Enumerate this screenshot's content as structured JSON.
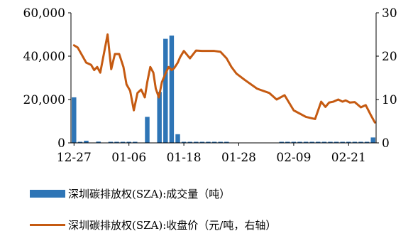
{
  "chart_data": {
    "type": "bar+line",
    "x_tick_labels": [
      "12-27",
      "01-06",
      "01-18",
      "01-28",
      "02-09",
      "02-21"
    ],
    "y_left": {
      "ylim": [
        0,
        60000
      ],
      "ticks": [
        "0",
        "20,000",
        "40,000",
        "60,000"
      ]
    },
    "y_right": {
      "ylim": [
        0,
        30
      ],
      "ticks": [
        "0",
        "10",
        "20",
        "30"
      ]
    },
    "colors": {
      "bar": "#2e75b6",
      "line": "#c55a11"
    },
    "series": [
      {
        "name": "深圳碳排放权(SZA):成交量（吨）",
        "type": "bar",
        "axis": "left",
        "x": [
          0,
          1,
          2,
          4,
          6,
          7,
          8,
          9,
          10,
          12,
          14,
          15,
          16,
          17,
          18,
          19,
          20,
          21,
          22,
          23,
          24,
          25,
          34,
          35,
          36,
          37,
          38,
          39,
          40,
          41,
          42,
          43,
          44,
          45,
          46,
          47,
          48,
          49
        ],
        "values": [
          21000,
          500,
          1000,
          600,
          500,
          500,
          500,
          500,
          500,
          12000,
          23500,
          48000,
          49500,
          4000,
          500,
          500,
          500,
          500,
          500,
          500,
          500,
          500,
          500,
          500,
          500,
          500,
          500,
          500,
          500,
          500,
          500,
          500,
          500,
          500,
          500,
          500,
          500,
          2500
        ]
      },
      {
        "name": "深圳碳排放权(SZA):收盘价（元/吨，右轴）",
        "type": "line",
        "axis": "right",
        "x": [
          0,
          0.6,
          1.2,
          2,
          2.8,
          3.3,
          3.8,
          4.3,
          5.5,
          6.1,
          6.7,
          7.4,
          8.1,
          8.6,
          9.2,
          9.8,
          10.4,
          11,
          11.6,
          12,
          12.5,
          13,
          13.4,
          13.9,
          14.4,
          15,
          15.5,
          16,
          16.4,
          17,
          17.4,
          18,
          19,
          20,
          21,
          22,
          23,
          24,
          25,
          25.8,
          26.6,
          28,
          30,
          32,
          33.2,
          34.5,
          36,
          38,
          39.5,
          40.5,
          41.2,
          41.8,
          42.5,
          43.3,
          44,
          44.5,
          45.2,
          46,
          47,
          47.8,
          48.6,
          49.3
        ],
        "values": [
          22.5,
          22,
          20.5,
          18.5,
          18,
          16.8,
          17.5,
          16.2,
          25,
          17,
          20.5,
          20.5,
          17.5,
          13.5,
          12,
          7.5,
          11.5,
          12.3,
          10.5,
          14,
          17.5,
          16.2,
          12.5,
          10.5,
          14,
          16,
          17.5,
          16.8,
          17.2,
          18.5,
          19.8,
          21.2,
          19.5,
          21.3,
          21.2,
          21.2,
          21.2,
          21,
          19.5,
          17.5,
          16,
          14.5,
          12.5,
          11.5,
          10,
          11,
          7.5,
          6,
          5.5,
          9.5,
          8.3,
          9.3,
          9.5,
          10,
          9.5,
          9.8,
          9.3,
          9.4,
          8.2,
          8.7,
          6.5,
          4.7
        ]
      }
    ]
  },
  "legend": {
    "bar_label": "深圳碳排放权(SZA):成交量（吨）",
    "line_label": "深圳碳排放权(SZA):收盘价（元/吨，右轴）"
  }
}
